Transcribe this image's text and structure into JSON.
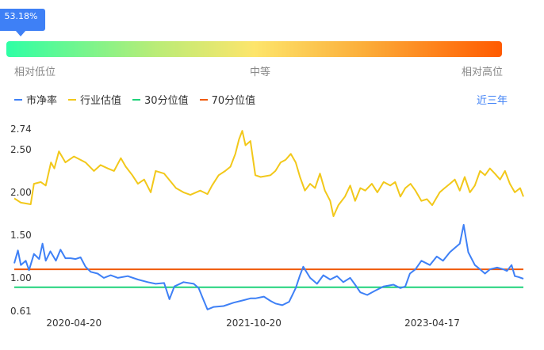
{
  "gauge": {
    "marker_label": "53.18%",
    "marker_value": 0.0295,
    "label_low": "相对低位",
    "label_mid": "中等",
    "label_high": "相对高位"
  },
  "legend": [
    {
      "label": "市净率",
      "color": "#3e80f6"
    },
    {
      "label": "行业估值",
      "color": "#f2c81a"
    },
    {
      "label": "30分位值",
      "color": "#1fd27a"
    },
    {
      "label": "70分位值",
      "color": "#f05a0a"
    }
  ],
  "range_label": "近三年",
  "chart_data": {
    "type": "line",
    "ylim": [
      0.61,
      2.74
    ],
    "yticks": [
      "2.74",
      "2.50",
      "2.00",
      "1.50",
      "1.00",
      "0.61"
    ],
    "xticks": [
      "2020-04-20",
      "2021-10-20",
      "2023-04-17"
    ],
    "x_range": [
      "2019-10-21",
      "2024-01-20"
    ],
    "series": [
      {
        "name": "市净率",
        "color": "#3e80f6",
        "points": [
          [
            "2019-10-21",
            1.17
          ],
          [
            "2019-11-01",
            1.32
          ],
          [
            "2019-11-10",
            1.15
          ],
          [
            "2019-11-25",
            1.2
          ],
          [
            "2019-12-05",
            1.09
          ],
          [
            "2019-12-20",
            1.28
          ],
          [
            "2020-01-05",
            1.22
          ],
          [
            "2020-01-15",
            1.4
          ],
          [
            "2020-01-25",
            1.2
          ],
          [
            "2020-02-08",
            1.31
          ],
          [
            "2020-02-25",
            1.2
          ],
          [
            "2020-03-10",
            1.33
          ],
          [
            "2020-03-25",
            1.23
          ],
          [
            "2020-04-10",
            1.23
          ],
          [
            "2020-04-25",
            1.22
          ],
          [
            "2020-05-10",
            1.24
          ],
          [
            "2020-05-25",
            1.13
          ],
          [
            "2020-06-10",
            1.07
          ],
          [
            "2020-07-01",
            1.05
          ],
          [
            "2020-07-20",
            1.0
          ],
          [
            "2020-08-10",
            1.03
          ],
          [
            "2020-09-01",
            1.0
          ],
          [
            "2020-10-01",
            1.02
          ],
          [
            "2020-11-01",
            0.98
          ],
          [
            "2020-12-01",
            0.95
          ],
          [
            "2020-12-25",
            0.93
          ],
          [
            "2021-01-20",
            0.94
          ],
          [
            "2021-02-05",
            0.75
          ],
          [
            "2021-02-20",
            0.9
          ],
          [
            "2021-03-20",
            0.95
          ],
          [
            "2021-04-20",
            0.93
          ],
          [
            "2021-05-05",
            0.88
          ],
          [
            "2021-05-20",
            0.74
          ],
          [
            "2021-06-01",
            0.63
          ],
          [
            "2021-06-20",
            0.66
          ],
          [
            "2021-07-20",
            0.67
          ],
          [
            "2021-08-20",
            0.71
          ],
          [
            "2021-09-20",
            0.74
          ],
          [
            "2021-10-10",
            0.76
          ],
          [
            "2021-10-25",
            0.76
          ],
          [
            "2021-11-20",
            0.78
          ],
          [
            "2021-12-10",
            0.73
          ],
          [
            "2021-12-25",
            0.7
          ],
          [
            "2022-01-15",
            0.68
          ],
          [
            "2022-02-05",
            0.72
          ],
          [
            "2022-02-25",
            0.88
          ],
          [
            "2022-03-10",
            1.03
          ],
          [
            "2022-03-20",
            1.13
          ],
          [
            "2022-04-10",
            1.0
          ],
          [
            "2022-05-01",
            0.93
          ],
          [
            "2022-05-20",
            1.03
          ],
          [
            "2022-06-10",
            0.98
          ],
          [
            "2022-07-01",
            1.02
          ],
          [
            "2022-07-20",
            0.95
          ],
          [
            "2022-08-10",
            1.0
          ],
          [
            "2022-08-25",
            0.92
          ],
          [
            "2022-09-10",
            0.83
          ],
          [
            "2022-10-01",
            0.8
          ],
          [
            "2022-10-25",
            0.85
          ],
          [
            "2022-11-20",
            0.9
          ],
          [
            "2022-12-20",
            0.92
          ],
          [
            "2023-01-10",
            0.88
          ],
          [
            "2023-01-25",
            0.9
          ],
          [
            "2023-02-08",
            1.05
          ],
          [
            "2023-02-25",
            1.1
          ],
          [
            "2023-03-15",
            1.2
          ],
          [
            "2023-04-10",
            1.15
          ],
          [
            "2023-05-01",
            1.25
          ],
          [
            "2023-05-20",
            1.2
          ],
          [
            "2023-06-10",
            1.3
          ],
          [
            "2023-06-25",
            1.35
          ],
          [
            "2023-07-10",
            1.4
          ],
          [
            "2023-07-22",
            1.62
          ],
          [
            "2023-08-05",
            1.3
          ],
          [
            "2023-08-25",
            1.15
          ],
          [
            "2023-09-10",
            1.1
          ],
          [
            "2023-09-25",
            1.05
          ],
          [
            "2023-10-10",
            1.1
          ],
          [
            "2023-11-01",
            1.12
          ],
          [
            "2023-11-20",
            1.1
          ],
          [
            "2023-12-01",
            1.08
          ],
          [
            "2023-12-15",
            1.15
          ],
          [
            "2023-12-25",
            1.02
          ],
          [
            "2024-01-05",
            1.01
          ],
          [
            "2024-01-20",
            0.99
          ]
        ]
      },
      {
        "name": "行业估值",
        "color": "#f2c81a",
        "points": [
          [
            "2019-10-21",
            1.93
          ],
          [
            "2019-11-10",
            1.88
          ],
          [
            "2019-12-10",
            1.86
          ],
          [
            "2019-12-20",
            2.1
          ],
          [
            "2020-01-10",
            2.12
          ],
          [
            "2020-01-25",
            2.08
          ],
          [
            "2020-02-10",
            2.35
          ],
          [
            "2020-02-20",
            2.28
          ],
          [
            "2020-03-05",
            2.48
          ],
          [
            "2020-03-25",
            2.35
          ],
          [
            "2020-04-20",
            2.42
          ],
          [
            "2020-05-10",
            2.38
          ],
          [
            "2020-05-25",
            2.35
          ],
          [
            "2020-06-20",
            2.25
          ],
          [
            "2020-07-10",
            2.32
          ],
          [
            "2020-08-01",
            2.28
          ],
          [
            "2020-08-20",
            2.25
          ],
          [
            "2020-09-10",
            2.4
          ],
          [
            "2020-09-25",
            2.3
          ],
          [
            "2020-10-15",
            2.2
          ],
          [
            "2020-11-01",
            2.1
          ],
          [
            "2020-11-20",
            2.15
          ],
          [
            "2020-12-10",
            2.0
          ],
          [
            "2020-12-25",
            2.25
          ],
          [
            "2021-01-20",
            2.22
          ],
          [
            "2021-02-10",
            2.12
          ],
          [
            "2021-02-25",
            2.05
          ],
          [
            "2021-03-20",
            2.0
          ],
          [
            "2021-04-10",
            1.97
          ],
          [
            "2021-05-10",
            2.02
          ],
          [
            "2021-06-01",
            1.98
          ],
          [
            "2021-06-15",
            2.08
          ],
          [
            "2021-07-05",
            2.2
          ],
          [
            "2021-07-25",
            2.25
          ],
          [
            "2021-08-10",
            2.3
          ],
          [
            "2021-08-25",
            2.45
          ],
          [
            "2021-09-05",
            2.62
          ],
          [
            "2021-09-15",
            2.72
          ],
          [
            "2021-09-25",
            2.55
          ],
          [
            "2021-10-10",
            2.6
          ],
          [
            "2021-10-25",
            2.2
          ],
          [
            "2021-11-10",
            2.18
          ],
          [
            "2021-12-10",
            2.2
          ],
          [
            "2021-12-25",
            2.25
          ],
          [
            "2022-01-10",
            2.35
          ],
          [
            "2022-01-25",
            2.38
          ],
          [
            "2022-02-10",
            2.45
          ],
          [
            "2022-02-25",
            2.35
          ],
          [
            "2022-03-10",
            2.18
          ],
          [
            "2022-03-25",
            2.02
          ],
          [
            "2022-04-10",
            2.1
          ],
          [
            "2022-04-25",
            2.05
          ],
          [
            "2022-05-10",
            2.22
          ],
          [
            "2022-05-25",
            2.02
          ],
          [
            "2022-06-10",
            1.9
          ],
          [
            "2022-06-20",
            1.72
          ],
          [
            "2022-07-05",
            1.85
          ],
          [
            "2022-07-25",
            1.95
          ],
          [
            "2022-08-10",
            2.08
          ],
          [
            "2022-08-25",
            1.9
          ],
          [
            "2022-09-10",
            2.05
          ],
          [
            "2022-09-25",
            2.02
          ],
          [
            "2022-10-15",
            2.1
          ],
          [
            "2022-11-01",
            2.0
          ],
          [
            "2022-11-20",
            2.12
          ],
          [
            "2022-12-10",
            2.08
          ],
          [
            "2022-12-25",
            2.12
          ],
          [
            "2023-01-10",
            1.95
          ],
          [
            "2023-01-25",
            2.05
          ],
          [
            "2023-02-10",
            2.1
          ],
          [
            "2023-02-25",
            2.02
          ],
          [
            "2023-03-15",
            1.9
          ],
          [
            "2023-04-01",
            1.92
          ],
          [
            "2023-04-17",
            1.85
          ],
          [
            "2023-05-10",
            2.0
          ],
          [
            "2023-05-25",
            2.05
          ],
          [
            "2023-06-10",
            2.1
          ],
          [
            "2023-06-25",
            2.15
          ],
          [
            "2023-07-10",
            2.02
          ],
          [
            "2023-07-25",
            2.18
          ],
          [
            "2023-08-10",
            2.0
          ],
          [
            "2023-08-25",
            2.08
          ],
          [
            "2023-09-10",
            2.25
          ],
          [
            "2023-09-25",
            2.2
          ],
          [
            "2023-10-10",
            2.28
          ],
          [
            "2023-10-25",
            2.22
          ],
          [
            "2023-11-10",
            2.15
          ],
          [
            "2023-11-25",
            2.25
          ],
          [
            "2023-12-10",
            2.1
          ],
          [
            "2023-12-25",
            2.0
          ],
          [
            "2024-01-10",
            2.05
          ],
          [
            "2024-01-20",
            1.95
          ]
        ]
      },
      {
        "name": "30分位值",
        "color": "#1fd27a",
        "points": [
          [
            "2019-10-21",
            0.89
          ],
          [
            "2024-01-20",
            0.89
          ]
        ]
      },
      {
        "name": "70分位值",
        "color": "#f05a0a",
        "points": [
          [
            "2019-10-21",
            1.1
          ],
          [
            "2024-01-20",
            1.1
          ]
        ]
      }
    ]
  }
}
